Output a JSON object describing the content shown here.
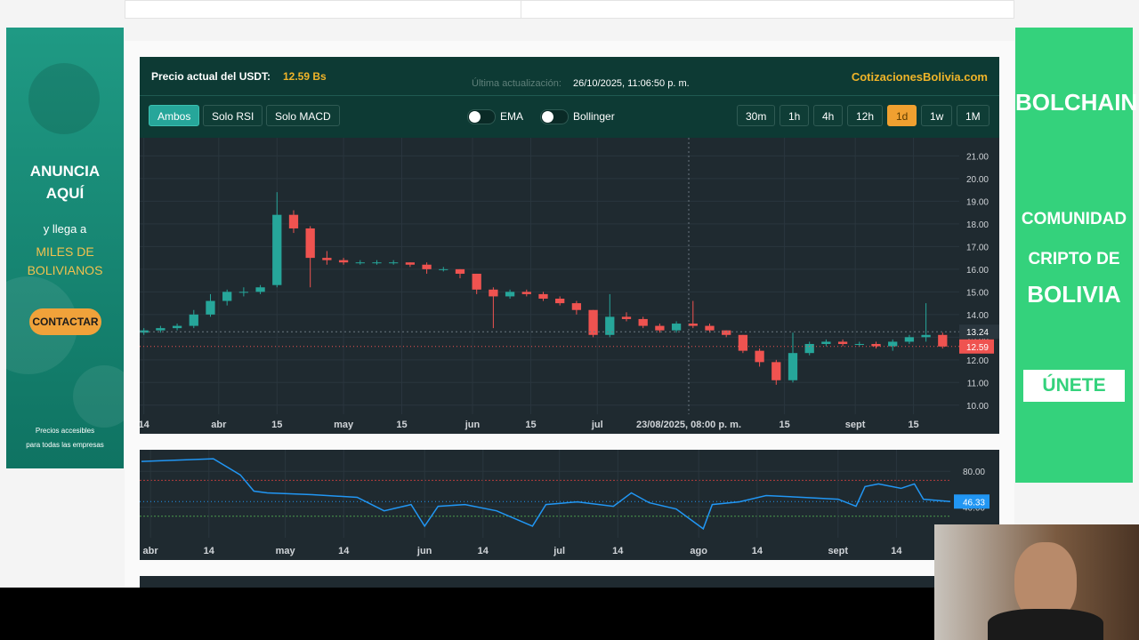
{
  "left_ad": {
    "headline": [
      "ANUNCIA",
      "AQUÍ"
    ],
    "subline": "y llega a",
    "highlight": [
      "MILES DE",
      "BOLIVIANOS"
    ],
    "button": "CONTACTAR",
    "footer": [
      "Precios accesibles",
      "para todas las empresas"
    ]
  },
  "right_ad": {
    "brand": "BOLCHAIN",
    "lines": [
      "COMUNIDAD",
      "CRIPTO DE"
    ],
    "big": "BOLIVIA",
    "button": "ÚNETE"
  },
  "header": {
    "price_label": "Precio actual del USDT:",
    "price": "12.59 Bs",
    "update_label": "Última actualización:",
    "timestamp": "26/10/2025, 11:06:50 p. m.",
    "brand": "CotizacionesBolivia.com"
  },
  "toolbar": {
    "views": [
      "Ambos",
      "Solo RSI",
      "Solo MACD"
    ],
    "active_view": "Ambos",
    "toggles": [
      "EMA",
      "Bollinger"
    ],
    "intervals": [
      "30m",
      "1h",
      "4h",
      "12h",
      "1d",
      "1w",
      "1M"
    ],
    "active_interval": "1d"
  },
  "chart_data": [
    {
      "type": "candlestick",
      "up_color": "#26a69a",
      "down_color": "#ef5350",
      "grid": true,
      "x": [
        0,
        4,
        8,
        12,
        16,
        20,
        24,
        28,
        32,
        36,
        40,
        44,
        48,
        52,
        56,
        60,
        64,
        68,
        72,
        76,
        80,
        84,
        88,
        92,
        96,
        100,
        104,
        108,
        112,
        116,
        120,
        124,
        128,
        132,
        136,
        140,
        144,
        148,
        152,
        156,
        160,
        164,
        168,
        172,
        176,
        180,
        184,
        188,
        192
      ],
      "open": [
        13.2,
        13.3,
        13.4,
        13.5,
        14.0,
        14.6,
        15.0,
        15.0,
        15.3,
        18.4,
        17.8,
        16.5,
        16.4,
        16.3,
        16.3,
        16.3,
        16.3,
        16.2,
        16.0,
        16.0,
        15.8,
        15.1,
        14.8,
        15.0,
        14.9,
        14.7,
        14.5,
        14.2,
        13.1,
        13.9,
        13.8,
        13.5,
        13.3,
        13.6,
        13.5,
        13.3,
        13.1,
        12.4,
        11.9,
        11.1,
        12.3,
        12.7,
        12.8,
        12.7,
        12.7,
        12.6,
        12.8,
        13.0,
        13.1
      ],
      "high": [
        13.4,
        13.5,
        13.6,
        14.2,
        14.9,
        15.1,
        15.2,
        15.3,
        19.4,
        18.6,
        17.9,
        16.8,
        16.5,
        16.4,
        16.4,
        16.4,
        16.3,
        16.3,
        16.1,
        16.0,
        15.8,
        15.2,
        15.1,
        15.1,
        15.0,
        14.8,
        14.6,
        14.2,
        14.9,
        14.1,
        13.9,
        13.6,
        13.7,
        14.6,
        13.6,
        13.3,
        13.1,
        12.5,
        12.0,
        13.2,
        12.8,
        12.9,
        12.9,
        12.8,
        12.8,
        12.9,
        13.1,
        14.5,
        13.2
      ],
      "low": [
        13.1,
        13.2,
        13.3,
        13.4,
        13.9,
        14.4,
        14.8,
        14.9,
        15.2,
        17.6,
        15.2,
        16.2,
        16.2,
        16.2,
        16.2,
        16.2,
        16.1,
        15.8,
        15.9,
        15.6,
        14.9,
        13.4,
        14.7,
        14.8,
        14.6,
        14.4,
        14.0,
        13.0,
        13.0,
        13.7,
        13.4,
        13.2,
        13.2,
        13.4,
        13.2,
        13.0,
        12.3,
        11.7,
        10.9,
        11.0,
        12.2,
        12.6,
        12.6,
        12.6,
        12.5,
        12.4,
        12.7,
        12.8,
        12.5
      ],
      "close": [
        13.3,
        13.4,
        13.5,
        14.0,
        14.6,
        15.0,
        15.0,
        15.2,
        18.4,
        17.8,
        16.5,
        16.4,
        16.3,
        16.3,
        16.3,
        16.3,
        16.2,
        16.0,
        16.0,
        15.8,
        15.1,
        14.8,
        15.0,
        14.9,
        14.7,
        14.5,
        14.2,
        13.1,
        13.9,
        13.8,
        13.5,
        13.3,
        13.6,
        13.5,
        13.3,
        13.1,
        12.4,
        11.9,
        11.1,
        12.3,
        12.7,
        12.8,
        12.7,
        12.7,
        12.6,
        12.8,
        13.0,
        13.1,
        12.59
      ],
      "xlim": [
        -1,
        196
      ],
      "xticks": [
        {
          "value": 0,
          "label": "14"
        },
        {
          "value": 18,
          "label": "abr"
        },
        {
          "value": 32,
          "label": "15"
        },
        {
          "value": 48,
          "label": "may"
        },
        {
          "value": 62,
          "label": "15"
        },
        {
          "value": 79,
          "label": "jun"
        },
        {
          "value": 93,
          "label": "15"
        },
        {
          "value": 109,
          "label": "jul"
        },
        {
          "value": 154,
          "label": "15"
        },
        {
          "value": 171,
          "label": "sept"
        },
        {
          "value": 185,
          "label": "15"
        }
      ],
      "ylim": [
        9.6,
        21.8
      ],
      "yticks": [
        {
          "value": 10,
          "label": "10.00"
        },
        {
          "value": 11,
          "label": "11.00"
        },
        {
          "value": 12,
          "label": "12.00"
        },
        {
          "value": 13,
          "label": "13.00"
        },
        {
          "value": 14,
          "label": "14.00"
        },
        {
          "value": 15,
          "label": "15.00"
        },
        {
          "value": 16,
          "label": "16.00"
        },
        {
          "value": 17,
          "label": "17.00"
        },
        {
          "value": 18,
          "label": "18.00"
        },
        {
          "value": 19,
          "label": "19.00"
        },
        {
          "value": 20,
          "label": "20.00"
        },
        {
          "value": 21,
          "label": "21.00"
        }
      ],
      "current_price": 12.59,
      "crosshair_price": 13.24,
      "crosshair_time": "23/08/2025, 08:00 p. m."
    },
    {
      "type": "line",
      "color": "#2196f3",
      "grid": true,
      "x": [
        16,
        32,
        38,
        41,
        44,
        54,
        64,
        70,
        76,
        79,
        82,
        88,
        95,
        103,
        106,
        113,
        121,
        125,
        129,
        135,
        141,
        143,
        149,
        155,
        163,
        171,
        175,
        177,
        180,
        185,
        188,
        190,
        196
      ],
      "values": [
        91,
        94,
        76,
        58,
        56,
        54,
        51,
        36,
        43,
        19,
        41,
        43,
        36,
        19,
        43,
        46,
        41,
        56,
        45,
        38,
        16,
        43,
        46,
        53,
        51,
        49,
        41,
        63,
        66,
        61,
        66,
        49,
        46.33
      ],
      "xlim": [
        15.6,
        196
      ],
      "xticks": [
        {
          "value": 18,
          "label": "abr"
        },
        {
          "value": 31,
          "label": "14"
        },
        {
          "value": 48,
          "label": "may"
        },
        {
          "value": 61,
          "label": "14"
        },
        {
          "value": 79,
          "label": "jun"
        },
        {
          "value": 92,
          "label": "14"
        },
        {
          "value": 109,
          "label": "jul"
        },
        {
          "value": 122,
          "label": "14"
        },
        {
          "value": 140,
          "label": "ago"
        },
        {
          "value": 153,
          "label": "14"
        },
        {
          "value": 171,
          "label": "sept"
        },
        {
          "value": 184,
          "label": "14"
        }
      ],
      "ylim": [
        6,
        104
      ],
      "yticks": [
        {
          "value": 80,
          "label": "80.00"
        },
        {
          "value": 40,
          "label": "40.00"
        }
      ],
      "levels": [
        70,
        30
      ],
      "level_colors": [
        "#b43c3c",
        "#4c9a4c"
      ]
    }
  ]
}
